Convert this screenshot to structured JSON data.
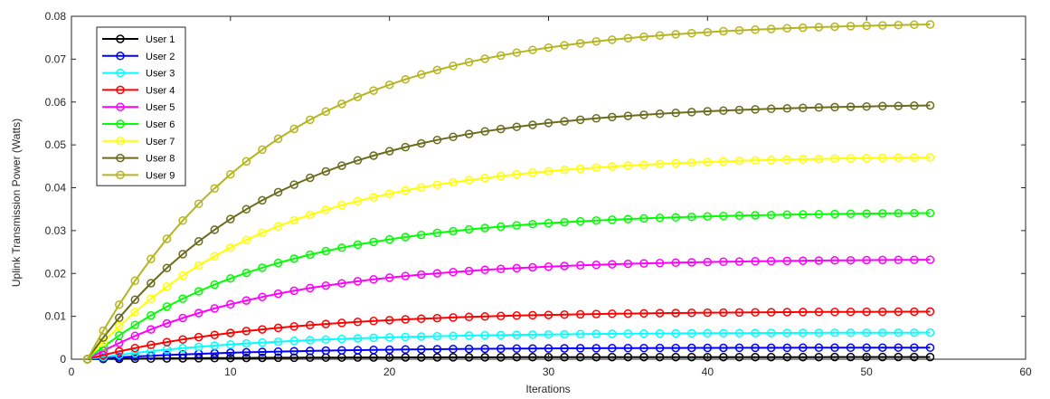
{
  "chart_data": {
    "type": "line",
    "xlabel": "Iterations",
    "ylabel": "Uplink Transmission Power (Watts)",
    "xlim": [
      0,
      60
    ],
    "ylim": [
      0,
      0.08
    ],
    "x_ticks": [
      0,
      10,
      20,
      30,
      40,
      50,
      60
    ],
    "x_tick_labels": [
      "0",
      "10",
      "20",
      "30",
      "40",
      "50",
      "60"
    ],
    "y_ticks": [
      0,
      0.01,
      0.02,
      0.03,
      0.04,
      0.05,
      0.06,
      0.07,
      0.08
    ],
    "y_tick_labels": [
      "0",
      "0.01",
      "0.02",
      "0.03",
      "0.04",
      "0.05",
      "0.06",
      "0.07",
      "0.08"
    ],
    "grid": false,
    "legend_position": "top-left",
    "marker": "circle",
    "x_start": 1,
    "x_end": 54,
    "growth_rate": 0.088,
    "series": [
      {
        "name": "User 1",
        "color": "#000000",
        "final_value": 0.0005
      },
      {
        "name": "User 2",
        "color": "#0000ff",
        "final_value": 0.0027
      },
      {
        "name": "User 3",
        "color": "#00ffff",
        "final_value": 0.0062
      },
      {
        "name": "User 4",
        "color": "#ff0000",
        "final_value": 0.0111
      },
      {
        "name": "User 5",
        "color": "#ff00ff",
        "final_value": 0.0232
      },
      {
        "name": "User 6",
        "color": "#00ff00",
        "final_value": 0.0341
      },
      {
        "name": "User 7",
        "color": "#ffff00",
        "final_value": 0.0471
      },
      {
        "name": "User 8",
        "color": "#6b6b1e",
        "final_value": 0.0592
      },
      {
        "name": "User 9",
        "color": "#b5b520",
        "final_value": 0.0781
      }
    ]
  }
}
